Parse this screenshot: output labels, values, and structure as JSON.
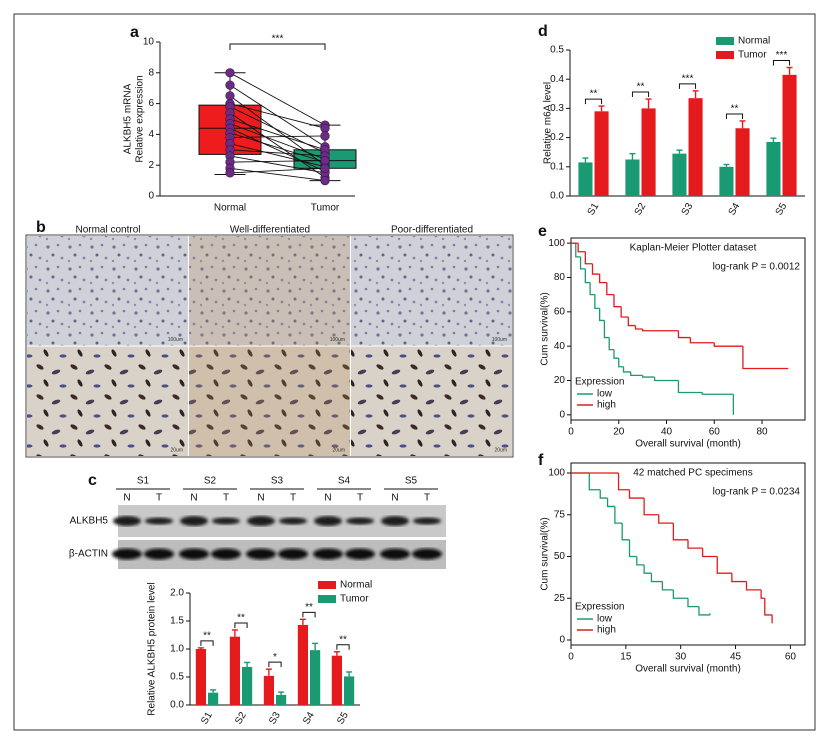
{
  "chart_data": [
    {
      "type": "box",
      "label": "a",
      "y_label": [
        "ALKBH5 mRNA",
        "Relative expression"
      ],
      "categories": [
        "Normal",
        "Tumor"
      ],
      "boxes": [
        {
          "min": 1.4,
          "q1": 2.7,
          "median": 4.4,
          "q3": 5.9,
          "max": 8.0,
          "color": "#ee1c1c"
        },
        {
          "min": 1.0,
          "q1": 1.8,
          "median": 2.3,
          "q3": 3.0,
          "max": 4.6,
          "color": "#1a9a72"
        }
      ],
      "paired_values": [
        [
          8.0,
          7.2,
          6.5,
          6.0,
          5.8,
          5.4,
          5.0,
          4.7,
          4.4,
          4.1,
          3.8,
          3.4,
          3.0,
          2.6,
          2.2,
          1.8,
          1.5
        ],
        [
          4.6,
          3.2,
          2.0,
          4.4,
          2.8,
          1.2,
          3.0,
          2.4,
          1.6,
          2.2,
          3.9,
          1.9,
          2.6,
          1.5,
          2.3,
          1.0,
          1.8
        ]
      ],
      "point_color": "#6b2d83",
      "significance": "***",
      "ylim": [
        0,
        10
      ],
      "yticks": [
        0,
        2,
        4,
        6,
        8,
        10
      ]
    },
    {
      "type": "grouped_bar",
      "label": "c",
      "y_label": "Relative ALKBH5 protein level",
      "categories": [
        "S1",
        "S2",
        "S3",
        "S4",
        "S5"
      ],
      "series": [
        {
          "name": "Normal",
          "color": "#e41a1c",
          "values": [
            1.0,
            1.22,
            0.52,
            1.43,
            0.88
          ],
          "errors": [
            0.02,
            0.12,
            0.12,
            0.1,
            0.07
          ]
        },
        {
          "name": "Tumor",
          "color": "#1a9a72",
          "values": [
            0.22,
            0.68,
            0.18,
            0.98,
            0.51
          ],
          "errors": [
            0.05,
            0.08,
            0.05,
            0.12,
            0.08
          ]
        }
      ],
      "significance": [
        "**",
        "**",
        "*",
        "**",
        "**"
      ],
      "ylim": [
        0,
        2.0
      ],
      "yticks": [
        {
          "value": 0,
          "label": "0.0"
        },
        0.5,
        {
          "value": 1,
          "label": "1.0"
        },
        1.5,
        {
          "value": 2,
          "label": "2.0"
        }
      ],
      "legend": "upper right"
    },
    {
      "type": "grouped_bar",
      "label": "d",
      "y_label": "Relative m6A level",
      "categories": [
        "S1",
        "S2",
        "S3",
        "S4",
        "S5"
      ],
      "series": [
        {
          "name": "Normal",
          "color": "#1a9a72",
          "values": [
            0.115,
            0.125,
            0.145,
            0.1,
            0.185
          ],
          "errors": [
            0.015,
            0.02,
            0.012,
            0.008,
            0.013
          ]
        },
        {
          "name": "Tumor",
          "color": "#e41a1c",
          "values": [
            0.29,
            0.3,
            0.335,
            0.232,
            0.415
          ],
          "errors": [
            0.018,
            0.032,
            0.025,
            0.025,
            0.025
          ]
        }
      ],
      "significance": [
        "**",
        "**",
        "***",
        "**",
        "***"
      ],
      "ylim": [
        0,
        0.5
      ],
      "yticks": [
        {
          "value": 0,
          "label": "0.0"
        },
        0.1,
        0.2,
        0.3,
        0.4,
        0.5
      ],
      "legend": "top"
    },
    {
      "type": "km",
      "label": "e",
      "title": "Kaplan-Meier Plotter dataset",
      "annotation": "log-rank P = 0.0012",
      "x_label": "Overall survival (month)",
      "y_label": "Cum survival(%)",
      "legend_title": "Expression",
      "series": [
        {
          "name": "low",
          "color": "#1a9a72",
          "x": [
            0,
            2,
            4,
            6,
            8,
            10,
            12,
            14,
            16,
            18,
            20,
            22,
            25,
            30,
            35,
            45,
            55,
            68,
            68
          ],
          "y": [
            100,
            92,
            85,
            77,
            70,
            62,
            55,
            45,
            38,
            33,
            28,
            25,
            23,
            22,
            20,
            13,
            12,
            10,
            0
          ]
        },
        {
          "name": "high",
          "color": "#e41a1c",
          "x": [
            0,
            3,
            6,
            9,
            12,
            15,
            18,
            21,
            24,
            27,
            30,
            45,
            50,
            60,
            72,
            91
          ],
          "y": [
            100,
            95,
            88,
            82,
            77,
            70,
            63,
            57,
            52,
            50,
            49,
            45,
            42,
            40,
            27,
            27
          ]
        }
      ],
      "xlim": [
        0,
        98
      ],
      "xticks": [
        0,
        20,
        40,
        60,
        80
      ],
      "ylim": [
        -3,
        103
      ],
      "yticks": [
        0,
        20,
        40,
        60,
        80,
        100
      ]
    },
    {
      "type": "km",
      "label": "f",
      "title": "42 matched PC specimens",
      "annotation": "log-rank P = 0.0234",
      "x_label": "Overall survival (month)",
      "y_label": "Cum survival(%)",
      "legend_title": "Expression",
      "series": [
        {
          "name": "low",
          "color": "#1a9a72",
          "x": [
            0,
            5,
            8,
            10,
            12,
            14,
            16,
            18,
            20,
            22,
            25,
            28,
            32,
            35,
            38
          ],
          "y": [
            100,
            90,
            85,
            80,
            70,
            60,
            50,
            45,
            40,
            35,
            30,
            25,
            20,
            15,
            16
          ]
        },
        {
          "name": "high",
          "color": "#e41a1c",
          "x": [
            0,
            10,
            13,
            16,
            20,
            24,
            28,
            32,
            36,
            40,
            44,
            48,
            52,
            53,
            55
          ],
          "y": [
            100,
            100,
            90,
            85,
            75,
            70,
            60,
            55,
            50,
            40,
            35,
            30,
            25,
            15,
            10
          ]
        }
      ],
      "xlim": [
        0,
        64
      ],
      "xticks": [
        0,
        15,
        30,
        45,
        60
      ],
      "ylim": [
        -3,
        106
      ],
      "yticks": [
        0,
        25,
        50,
        75,
        100
      ]
    }
  ],
  "panel_b": {
    "label": "b",
    "columns": [
      "Normal control",
      "Well-differentiated",
      "Poor-differentiated"
    ],
    "scale_labels": [
      "100um",
      "20um"
    ]
  },
  "western_blot": {
    "samples": [
      "S1",
      "S2",
      "S3",
      "S4",
      "S5"
    ],
    "lanes": [
      "N",
      "T"
    ],
    "rows": [
      "ALKBH5",
      "β-ACTIN"
    ]
  }
}
